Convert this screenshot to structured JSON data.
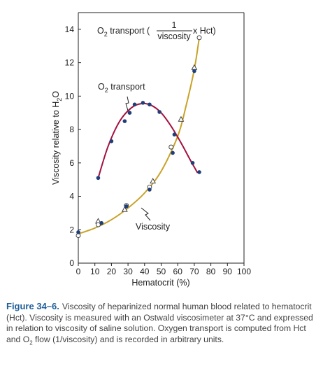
{
  "colors": {
    "o2_curve": "#a3123f",
    "viscosity_curve": "#c9a227",
    "marker_fill": "#1f3f7a",
    "caption_label": "#1f5e9a"
  },
  "annotations": {
    "formula_prefix": "O",
    "formula_sub": "2",
    "formula_mid": " transport (",
    "formula_num": "1",
    "formula_den": "viscosity",
    "formula_suffix": " x Hct)",
    "o2_label_prefix": "O",
    "o2_label_sub": "2",
    "o2_label_suffix": " transport",
    "viscosity_label": "Viscosity"
  },
  "axes": {
    "xlabel": "Hematocrit (%)",
    "ylabel_prefix": "Viscosity relative to H",
    "ylabel_sub": "2",
    "ylabel_suffix": "O"
  },
  "caption": {
    "label": "Figure 34–6.",
    "text_1": "Viscosity of heparinized normal human blood related to hematocrit (Hct). Viscosity is measured with an Ostwald viscosimeter at 37°C and expressed in relation to viscosity of saline solution. Oxygen transport is computed from Hct and O",
    "text_sub": "2",
    "text_2": " flow (1/viscosity) and is recorded in arbitrary units."
  },
  "chart_data": {
    "type": "scatter",
    "xlim": [
      0,
      100
    ],
    "ylim": [
      0,
      15
    ],
    "xticks": [
      0,
      10,
      20,
      30,
      40,
      50,
      60,
      70,
      80,
      90,
      100
    ],
    "yticks": [
      0,
      2,
      4,
      6,
      8,
      10,
      12,
      14
    ],
    "grid": false,
    "series": [
      {
        "kind": "o2_transport",
        "curve": [
          [
            12,
            5.1
          ],
          [
            18,
            7.0
          ],
          [
            25,
            8.5
          ],
          [
            32,
            9.3
          ],
          [
            38,
            9.55
          ],
          [
            44,
            9.45
          ],
          [
            50,
            9.0
          ],
          [
            56,
            8.2
          ],
          [
            62,
            7.2
          ],
          [
            68,
            6.1
          ],
          [
            72,
            5.4
          ]
        ],
        "filled_circles": [
          [
            12,
            5.1
          ],
          [
            20,
            7.3
          ],
          [
            28,
            8.5
          ],
          [
            31,
            9.0
          ],
          [
            34,
            9.5
          ],
          [
            39,
            9.6
          ],
          [
            43,
            9.5
          ],
          [
            49,
            9.05
          ],
          [
            58,
            7.7
          ],
          [
            69,
            6.0
          ],
          [
            73,
            5.45
          ]
        ]
      },
      {
        "kind": "viscosity",
        "curve": [
          [
            0,
            1.75
          ],
          [
            10,
            2.1
          ],
          [
            20,
            2.6
          ],
          [
            30,
            3.3
          ],
          [
            40,
            4.2
          ],
          [
            50,
            5.5
          ],
          [
            60,
            7.6
          ],
          [
            65,
            9.4
          ],
          [
            70,
            11.6
          ],
          [
            73,
            13.5
          ]
        ],
        "filled_circles": [
          [
            0,
            1.85
          ],
          [
            14,
            2.4
          ],
          [
            29,
            3.4
          ],
          [
            43,
            4.4
          ],
          [
            57,
            6.6
          ],
          [
            70,
            11.5
          ]
        ],
        "open_circles": [
          [
            0,
            1.65
          ],
          [
            12,
            2.3
          ],
          [
            29,
            3.45
          ],
          [
            43,
            4.55
          ],
          [
            56,
            6.95
          ],
          [
            73,
            13.5
          ]
        ],
        "open_triangles": [
          [
            12,
            2.5
          ],
          [
            28,
            3.2
          ],
          [
            45,
            4.9
          ],
          [
            62,
            8.6
          ],
          [
            70,
            11.7
          ]
        ]
      }
    ]
  }
}
